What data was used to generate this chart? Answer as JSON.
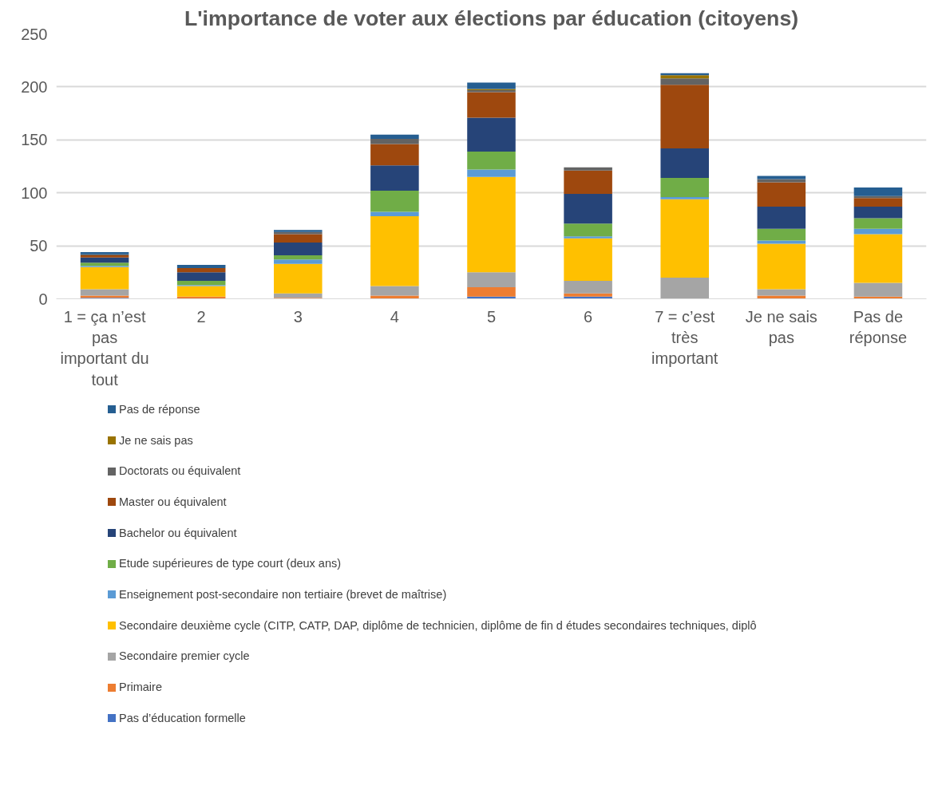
{
  "chart_data": {
    "type": "bar",
    "stacked": true,
    "title": "L'importance de voter aux élections par éducation (citoyens)",
    "categories": [
      "1 = ça n’est pas important du tout",
      "2",
      "3",
      "4",
      "5",
      "6",
      "7 = c’est très important",
      "Je ne sais pas",
      "Pas de réponse"
    ],
    "ylim": [
      0,
      250
    ],
    "yticks": [
      0,
      50,
      100,
      150,
      200,
      250
    ],
    "grid": "y",
    "legend": "bottom",
    "series": [
      {
        "name": "Pas d’éducation formelle",
        "color": "#4472c4",
        "values": [
          1,
          0,
          0,
          0,
          2,
          2,
          0,
          0,
          0
        ]
      },
      {
        "name": "Primaire",
        "color": "#ed7d31",
        "values": [
          2,
          2,
          1,
          3,
          9,
          3,
          0,
          3,
          2
        ]
      },
      {
        "name": "Secondaire premier cycle",
        "color": "#a5a5a5",
        "values": [
          6,
          0,
          4,
          9,
          14,
          12,
          20,
          6,
          13
        ]
      },
      {
        "name": "Secondaire deuxième cycle (CITP, CATP, DAP, diplôme de technicien, diplôme de fin d études secondaires techniques, diplô",
        "color": "#ffc000",
        "values": [
          21,
          10,
          28,
          66,
          90,
          40,
          74,
          43,
          46
        ]
      },
      {
        "name": "Enseignement post-secondaire non tertiaire (brevet de maîtrise)",
        "color": "#5b9bd5",
        "values": [
          1,
          1,
          4,
          4,
          7,
          2,
          2,
          3,
          5
        ]
      },
      {
        "name": "Etude supérieures de type court (deux ans)",
        "color": "#70ad47",
        "values": [
          3,
          4,
          4,
          20,
          17,
          12,
          18,
          11,
          10
        ]
      },
      {
        "name": "Bachelor ou équivalent",
        "color": "#264478",
        "values": [
          5,
          8,
          12,
          24,
          32,
          28,
          28,
          21,
          11
        ]
      },
      {
        "name": "Master ou équivalent",
        "color": "#9e480e",
        "values": [
          2,
          4,
          8,
          20,
          24,
          22,
          60,
          23,
          8
        ]
      },
      {
        "name": "Doctorats ou équivalent",
        "color": "#636363",
        "values": [
          1,
          0,
          2,
          5,
          2,
          3,
          6,
          3,
          2
        ]
      },
      {
        "name": "Je ne sais pas",
        "color": "#997300",
        "values": [
          0,
          0,
          0,
          0,
          1,
          0,
          3,
          0,
          0
        ]
      },
      {
        "name": "Pas de réponse",
        "color": "#255e91",
        "values": [
          2,
          3,
          2,
          4,
          6,
          0,
          2,
          3,
          8
        ]
      }
    ]
  }
}
